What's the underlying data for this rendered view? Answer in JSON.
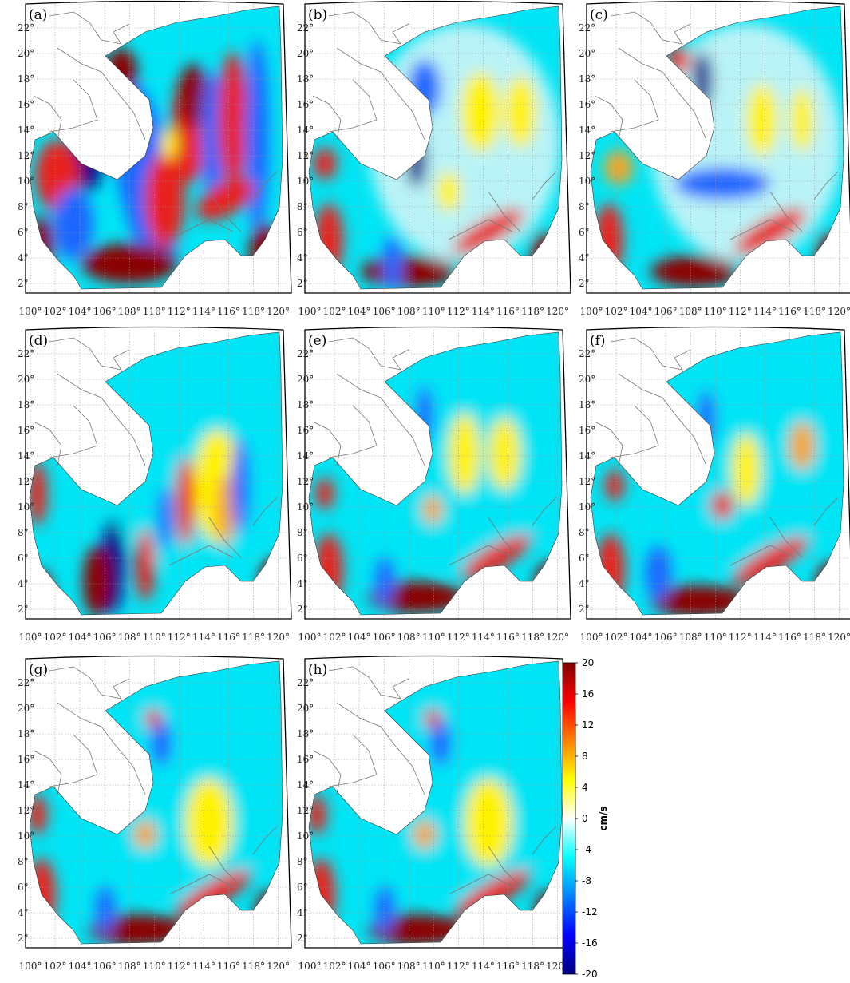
{
  "figure": {
    "panels": [
      {
        "label": "(a)",
        "style": "a"
      },
      {
        "label": "(b)",
        "style": "b"
      },
      {
        "label": "(c)",
        "style": "c"
      },
      {
        "label": "(d)",
        "style": "d"
      },
      {
        "label": "(e)",
        "style": "e"
      },
      {
        "label": "(f)",
        "style": "f"
      },
      {
        "label": "(g)",
        "style": "g"
      },
      {
        "label": "(h)",
        "style": "h"
      }
    ],
    "lat_ticks": [
      "2°",
      "4°",
      "6°",
      "8°",
      "10°",
      "12°",
      "14°",
      "16°",
      "18°",
      "20°",
      "22°"
    ],
    "lon_ticks": [
      "100°",
      "102°",
      "104°",
      "106°",
      "108°",
      "110°",
      "112°",
      "114°",
      "116°",
      "118°",
      "120°"
    ],
    "colorbar": {
      "unit": "cm/s",
      "range": [
        -20,
        20
      ],
      "ticks": [
        "20",
        "16",
        "12",
        "8",
        "4",
        "0",
        "-4",
        "-8",
        "-12",
        "-16",
        "-20"
      ],
      "colormap": [
        "#000080",
        "#0000ff",
        "#0080ff",
        "#00ffff",
        "#ffffff",
        "#ffff00",
        "#ff8000",
        "#ff0000",
        "#800000"
      ]
    },
    "colors": {
      "land_border": "#777777",
      "grid": "#9a9a9a",
      "frame": "#000000",
      "dark_red": "#8b0000",
      "red": "#e8231b",
      "orange": "#f5a623",
      "yellow": "#fff200",
      "light_cyan": "#b9f3f7",
      "cyan": "#00e5f5",
      "blue": "#1a66ff",
      "dark_blue": "#08108a"
    }
  }
}
